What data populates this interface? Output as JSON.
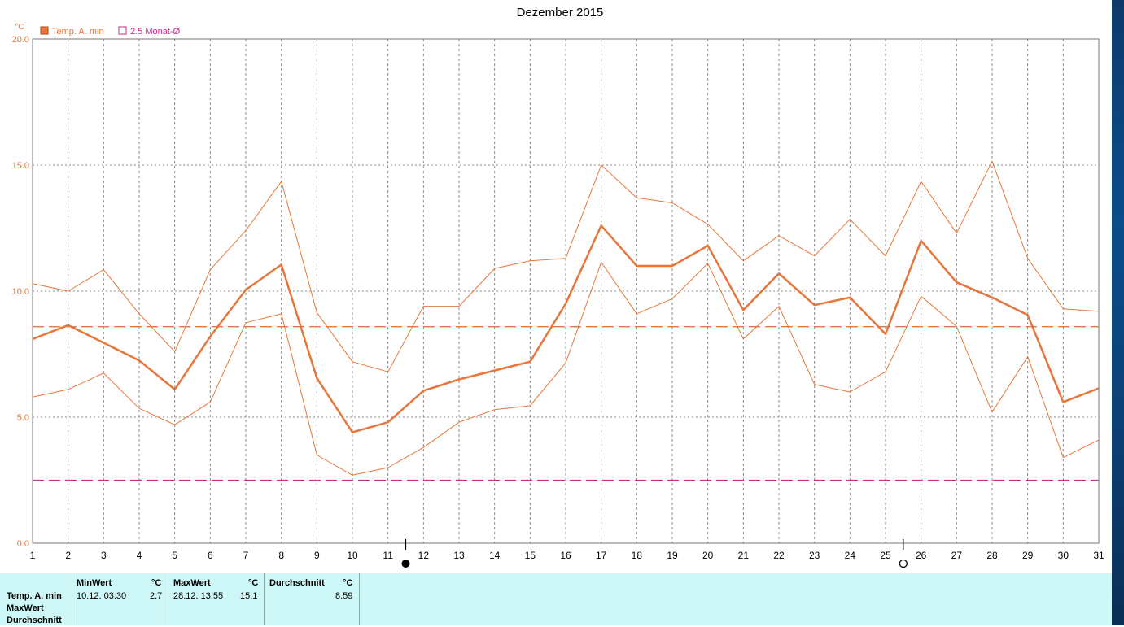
{
  "chart_data": {
    "type": "line",
    "title": "Dezember 2015",
    "unit_label": "°C",
    "x": [
      1,
      2,
      3,
      4,
      5,
      6,
      7,
      8,
      9,
      10,
      11,
      12,
      13,
      14,
      15,
      16,
      17,
      18,
      19,
      20,
      21,
      22,
      23,
      24,
      25,
      26,
      27,
      28,
      29,
      30,
      31
    ],
    "ylim": [
      0,
      20
    ],
    "yticks": [
      "0.0",
      "5.0",
      "10.0",
      "15.0",
      "20.0"
    ],
    "grid": true,
    "legend": [
      {
        "label": "Temp. A. min",
        "color": "#e8763a",
        "marker": "filled"
      },
      {
        "label": "2.5 Monat-Ø",
        "color": "#cc2a8a",
        "marker": "hollow"
      }
    ],
    "series": [
      {
        "name": "Temp. A. min",
        "color": "#e8763a",
        "width": 2.5,
        "values": [
          8.1,
          8.65,
          7.95,
          7.25,
          6.1,
          8.2,
          10.05,
          11.05,
          6.55,
          4.4,
          4.8,
          6.05,
          6.5,
          6.85,
          7.2,
          9.5,
          12.6,
          11.0,
          11.0,
          11.8,
          9.25,
          10.7,
          9.45,
          9.75,
          8.3,
          12.0,
          10.35,
          9.75,
          9.05,
          5.6,
          6.15
        ]
      },
      {
        "color": "#e8763a",
        "width": 1,
        "values": [
          10.3,
          10.0,
          10.85,
          9.1,
          7.6,
          10.85,
          12.4,
          14.35,
          9.15,
          7.2,
          6.8,
          9.4,
          9.4,
          10.9,
          11.2,
          11.3,
          15.0,
          13.7,
          13.5,
          12.65,
          11.2,
          12.2,
          11.4,
          12.85,
          11.4,
          14.35,
          12.3,
          15.15,
          11.3,
          9.3,
          9.2
        ]
      },
      {
        "color": "#e8763a",
        "width": 1,
        "values": [
          5.8,
          6.1,
          6.75,
          5.35,
          4.7,
          5.6,
          8.75,
          9.1,
          3.5,
          2.7,
          3.0,
          3.8,
          4.8,
          5.3,
          5.45,
          7.15,
          11.15,
          9.1,
          9.7,
          11.1,
          8.1,
          9.4,
          6.3,
          6.0,
          6.8,
          9.8,
          8.6,
          5.2,
          7.4,
          3.4,
          4.1
        ]
      }
    ],
    "reference_lines": [
      {
        "value": 8.59,
        "color": "#e8763a"
      },
      {
        "value": 2.5,
        "color": "#cc2a8a"
      }
    ],
    "moon_markers": [
      {
        "day": 11.5,
        "phase": "new-moon"
      },
      {
        "day": 25.5,
        "phase": "full-moon"
      }
    ]
  },
  "stats": {
    "row_labels": [
      "Temp. A. min",
      "MaxWert",
      "Durchschnitt"
    ],
    "min_header": "MinWert",
    "min_unit": "°C",
    "min_date": "10.12.  03:30",
    "min_value": "2.7",
    "max_header": "MaxWert",
    "max_unit": "°C",
    "max_date": "28.12.  13:55",
    "max_value": "15.1",
    "avg_header": "Durchschnitt",
    "avg_unit": "°C",
    "avg_value": "8.59"
  }
}
